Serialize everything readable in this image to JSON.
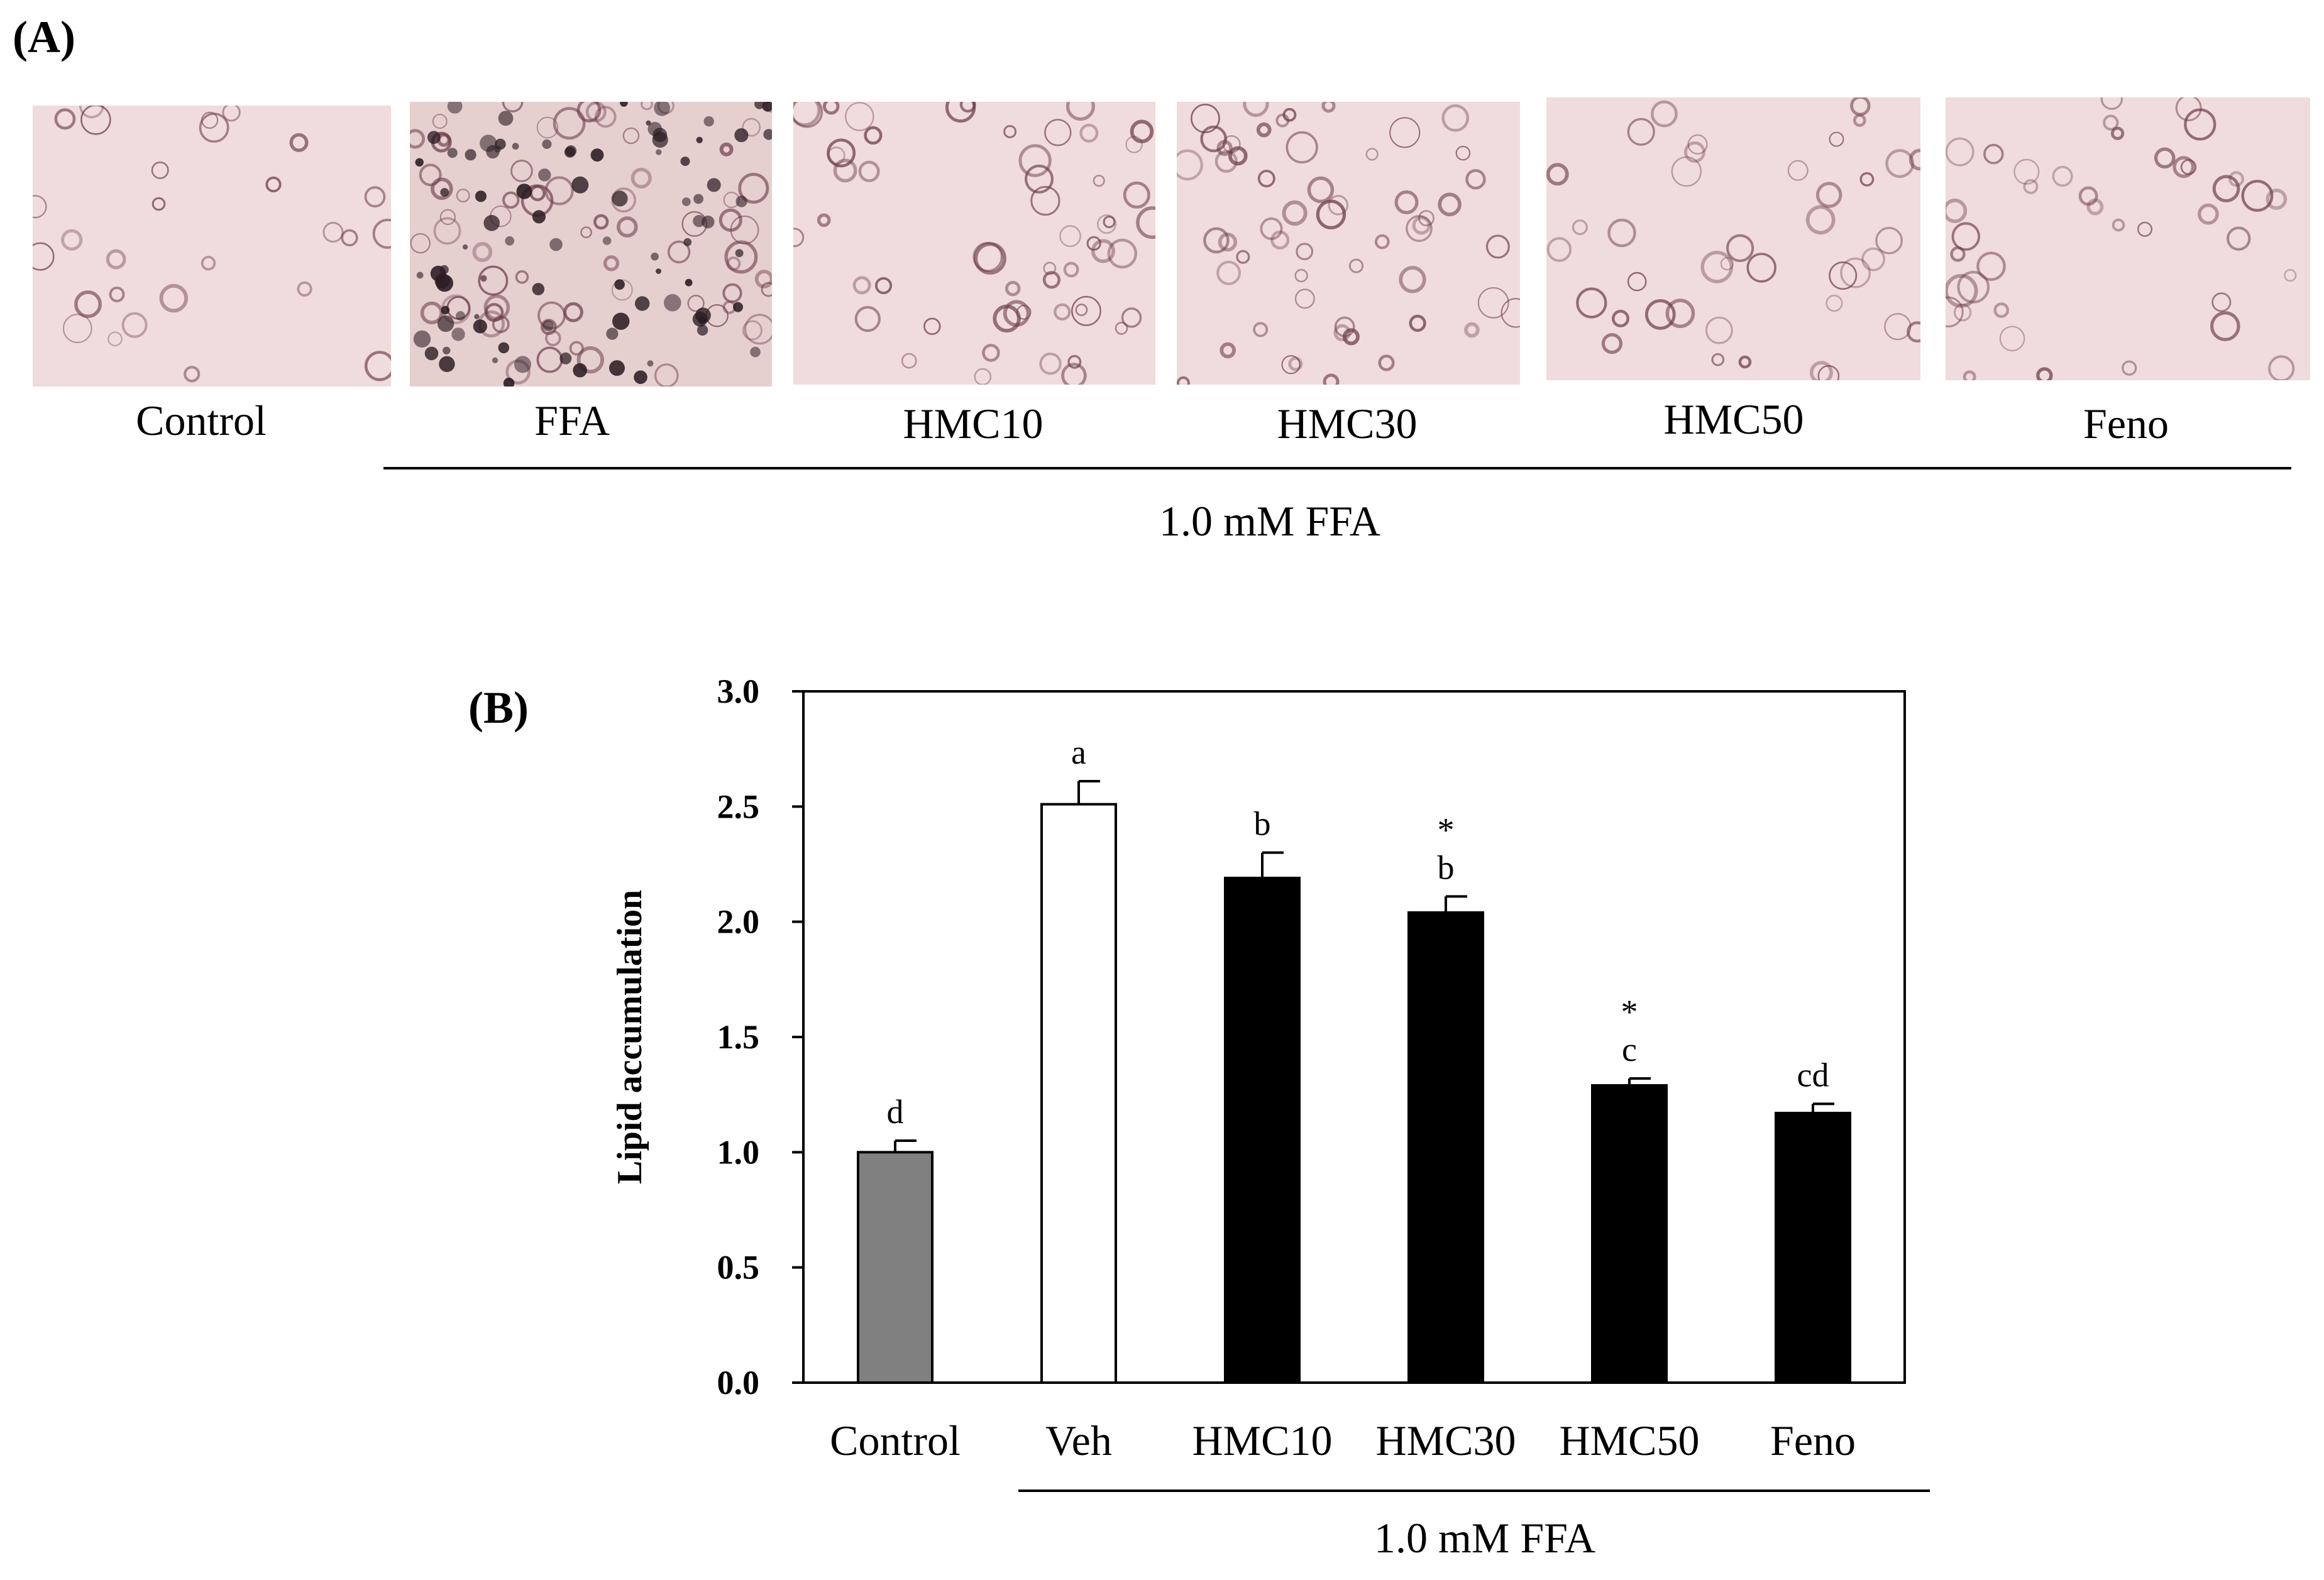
{
  "panel_a": {
    "label": "(A)",
    "images": [
      {
        "label": "Control",
        "stain": "light"
      },
      {
        "label": "FFA",
        "stain": "heavy"
      },
      {
        "label": "HMC10",
        "stain": "medium"
      },
      {
        "label": "HMC30",
        "stain": "medium"
      },
      {
        "label": "HMC50",
        "stain": "light-medium"
      },
      {
        "label": "Feno",
        "stain": "light-medium"
      }
    ],
    "bracket_label": "1.0 mM FFA"
  },
  "chart_data": {
    "type": "bar",
    "panel_label": "(B)",
    "ylabel": "Lipid accumulation",
    "ylim": [
      0,
      3.0
    ],
    "yticks": [
      "0.0",
      "0.5",
      "1.0",
      "1.5",
      "2.0",
      "2.5",
      "3.0"
    ],
    "categories": [
      "Control",
      "Veh",
      "HMC10",
      "HMC30",
      "HMC50",
      "Feno"
    ],
    "values": [
      1.0,
      2.51,
      2.19,
      2.04,
      1.29,
      1.17
    ],
    "errors": [
      0.05,
      0.1,
      0.11,
      0.07,
      0.03,
      0.04
    ],
    "letters": [
      "d",
      "a",
      "b",
      "b",
      "c",
      "cd"
    ],
    "stars": [
      "",
      "",
      "",
      "*",
      "*",
      ""
    ],
    "bar_colors": [
      "#808080",
      "#ffffff",
      "#000000",
      "#000000",
      "#000000",
      "#000000"
    ],
    "bracket_label": "1.0 mM FFA"
  }
}
